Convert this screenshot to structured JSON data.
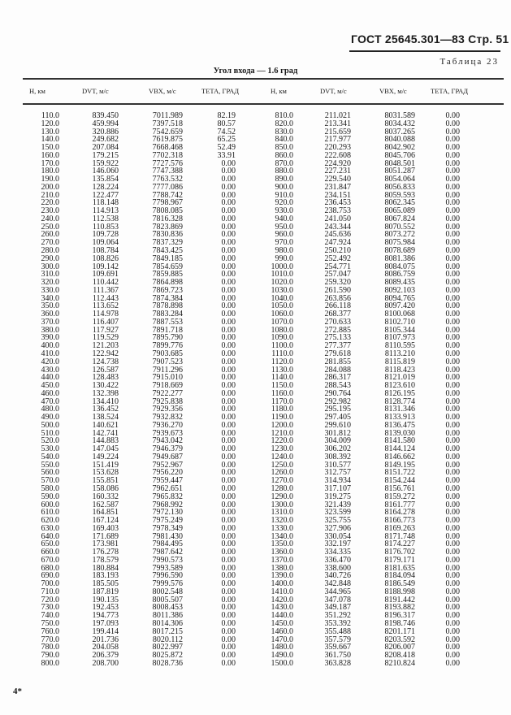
{
  "header": {
    "standard": "ГОСТ 25645.301—83 Стр. 51",
    "table_label": "Таблица 23",
    "title": "Угол входа — 1.6 град"
  },
  "columns": [
    "H, км",
    "DVT, м/с",
    "VBX, м/с",
    "ТЕТА, ГРАД",
    "H, км",
    "DVT, м/с",
    "VBX, м/с",
    "ТЕТА, ГРАД"
  ],
  "left_rows": [
    [
      "110.0",
      "839.450",
      "7011.989",
      "82.19"
    ],
    [
      "120.0",
      "459.994",
      "7397.518",
      "80.57"
    ],
    [
      "130.0",
      "320.886",
      "7542.659",
      "74.52"
    ],
    [
      "140.0",
      "249.682",
      "7619.875",
      "65.25"
    ],
    [
      "150.0",
      "207.084",
      "7668.468",
      "52.49"
    ],
    [
      "160.0",
      "179.215",
      "7702.318",
      "33.91"
    ],
    [
      "170.0",
      "159.922",
      "7727.576",
      "0.00"
    ],
    [
      "180.0",
      "146.060",
      "7747.388",
      "0.00"
    ],
    [
      "190.0",
      "135.854",
      "7763.532",
      "0.00"
    ],
    [
      "200.0",
      "128.224",
      "7777.086",
      "0.00"
    ],
    [
      "210.0",
      "122.477",
      "7788.742",
      "0.00"
    ],
    [
      "220.0",
      "118.148",
      "7798.967",
      "0.00"
    ],
    [
      "230.0",
      "114.913",
      "7808.085",
      "0.00"
    ],
    [
      "240.0",
      "112.538",
      "7816.328",
      "0.00"
    ],
    [
      "250.0",
      "110.853",
      "7823.869",
      "0.00"
    ],
    [
      "260.0",
      "109.728",
      "7830.836",
      "0.00"
    ],
    [
      "270.0",
      "109.064",
      "7837.329",
      "0.00"
    ],
    [
      "280.0",
      "108.784",
      "7843.425",
      "0.00"
    ],
    [
      "290.0",
      "108.826",
      "7849.185",
      "0.00"
    ],
    [
      "300.0",
      "109.142",
      "7854.659",
      "0.00"
    ],
    [
      "310.0",
      "109.691",
      "7859.885",
      "0.00"
    ],
    [
      "320.0",
      "110.442",
      "7864.898",
      "0.00"
    ],
    [
      "330.0",
      "111.367",
      "7869.723",
      "0.00"
    ],
    [
      "340.0",
      "112.443",
      "7874.384",
      "0.00"
    ],
    [
      "350.0",
      "113.652",
      "7878.898",
      "0.00"
    ],
    [
      "360.0",
      "114.978",
      "7883.284",
      "0.00"
    ],
    [
      "370.0",
      "116.407",
      "7887.553",
      "0.00"
    ],
    [
      "380.0",
      "117.927",
      "7891.718",
      "0.00"
    ],
    [
      "390.0",
      "119.529",
      "7895.790",
      "0.00"
    ],
    [
      "400.0",
      "121.203",
      "7899.776",
      "0.00"
    ],
    [
      "410.0",
      "122.942",
      "7903.685",
      "0.00"
    ],
    [
      "420.0",
      "124.738",
      "7907.523",
      "0.00"
    ],
    [
      "430.0",
      "126.587",
      "7911.296",
      "0.00"
    ],
    [
      "440.0",
      "128.483",
      "7915.010",
      "0.00"
    ],
    [
      "450.0",
      "130.422",
      "7918.669",
      "0.00"
    ],
    [
      "460.0",
      "132.398",
      "7922.277",
      "0.00"
    ],
    [
      "470.0",
      "134.410",
      "7925.838",
      "0.00"
    ],
    [
      "480.0",
      "136.452",
      "7929.356",
      "0.00"
    ],
    [
      "490.0",
      "138.524",
      "7932.832",
      "0.00"
    ],
    [
      "500.0",
      "140.621",
      "7936.270",
      "0.00"
    ],
    [
      "510.0",
      "142.741",
      "7939.673",
      "0.00"
    ],
    [
      "520.0",
      "144.883",
      "7943.042",
      "0.00"
    ],
    [
      "530.0",
      "147.045",
      "7946.379",
      "0.00"
    ],
    [
      "540.0",
      "149.224",
      "7949.687",
      "0.00"
    ],
    [
      "550.0",
      "151.419",
      "7952.967",
      "0.00"
    ],
    [
      "560.0",
      "153.628",
      "7956.220",
      "0.00"
    ],
    [
      "570.0",
      "155.851",
      "7959.447",
      "0.00"
    ],
    [
      "580.0",
      "158.086",
      "7962.651",
      "0.00"
    ],
    [
      "590.0",
      "160.332",
      "7965.832",
      "0.00"
    ],
    [
      "600.0",
      "162.587",
      "7968.992",
      "0.00"
    ],
    [
      "610.0",
      "164.851",
      "7972.130",
      "0.00"
    ],
    [
      "620.0",
      "167.124",
      "7975.249",
      "0.00"
    ],
    [
      "630.0",
      "169.403",
      "7978.349",
      "0.00"
    ],
    [
      "640.0",
      "171.689",
      "7981.430",
      "0.00"
    ],
    [
      "650.0",
      "173.981",
      "7984.495",
      "0.00"
    ],
    [
      "660.0",
      "176.278",
      "7987.642",
      "0.00"
    ],
    [
      "670.0",
      "178.579",
      "7990.573",
      "0.00"
    ],
    [
      "680.0",
      "180.884",
      "7993.589",
      "0.00"
    ],
    [
      "690.0",
      "183.193",
      "7996.590",
      "0.00"
    ],
    [
      "700.0",
      "185.505",
      "7999.576",
      "0.00"
    ],
    [
      "710.0",
      "187.819",
      "8002.548",
      "0.00"
    ],
    [
      "720.0",
      "190.135",
      "8005.507",
      "0.00"
    ],
    [
      "730.0",
      "192.453",
      "8008.453",
      "0.00"
    ],
    [
      "740.0",
      "194.773",
      "8011.386",
      "0.00"
    ],
    [
      "750.0",
      "197.093",
      "8014.306",
      "0.00"
    ],
    [
      "760.0",
      "199.414",
      "8017.215",
      "0.00"
    ],
    [
      "770.0",
      "201.736",
      "8020.112",
      "0.00"
    ],
    [
      "780.0",
      "204.058",
      "8022.997",
      "0.00"
    ],
    [
      "790.0",
      "206.379",
      "8025.872",
      "0.00"
    ],
    [
      "800.0",
      "208.700",
      "8028.736",
      "0.00"
    ]
  ],
  "right_rows": [
    [
      "810.0",
      "211.021",
      "8031.589",
      "0.00"
    ],
    [
      "820.0",
      "213.341",
      "8034.432",
      "0.00"
    ],
    [
      "830.0",
      "215.659",
      "8037.265",
      "0.00"
    ],
    [
      "840.0",
      "217.977",
      "8040.088",
      "0.00"
    ],
    [
      "850.0",
      "220.293",
      "8042.902",
      "0.00"
    ],
    [
      "860.0",
      "222.608",
      "8045.706",
      "0.00"
    ],
    [
      "870.0",
      "224.920",
      "8048.501",
      "0.00"
    ],
    [
      "880.0",
      "227.231",
      "8051.287",
      "0.00"
    ],
    [
      "890.0",
      "229.540",
      "8054.064",
      "0.00"
    ],
    [
      "900.0",
      "231.847",
      "8056.833",
      "0.00"
    ],
    [
      "910.0",
      "234.151",
      "8059.593",
      "0.00"
    ],
    [
      "920.0",
      "236.453",
      "8062.345",
      "0.00"
    ],
    [
      "930.0",
      "238.753",
      "8065.089",
      "0.00"
    ],
    [
      "940.0",
      "241.050",
      "8067.824",
      "0.00"
    ],
    [
      "950.0",
      "243.344",
      "8070.552",
      "0.00"
    ],
    [
      "960.0",
      "245.636",
      "8073.272",
      "0.00"
    ],
    [
      "970.0",
      "247.924",
      "8075.984",
      "0.00"
    ],
    [
      "980.0",
      "250.210",
      "8078.689",
      "0.00"
    ],
    [
      "990.0",
      "252.492",
      "8081.386",
      "0.00"
    ],
    [
      "1000.0",
      "254.771",
      "8084.075",
      "0.00"
    ],
    [
      "1010.0",
      "257.047",
      "8086.759",
      "0.00"
    ],
    [
      "1020.0",
      "259.320",
      "8089.435",
      "0.00"
    ],
    [
      "1030.0",
      "261.590",
      "8092.103",
      "0.00"
    ],
    [
      "1040.0",
      "263.856",
      "8094.765",
      "0.00"
    ],
    [
      "1050.0",
      "266.118",
      "8097.420",
      "0.00"
    ],
    [
      "1060.0",
      "268.377",
      "8100.068",
      "0.00"
    ],
    [
      "1070.0",
      "270.633",
      "8102.710",
      "0.00"
    ],
    [
      "1080.0",
      "272.885",
      "8105.344",
      "0.00"
    ],
    [
      "1090.0",
      "275.133",
      "8107.973",
      "0.00"
    ],
    [
      "1100.0",
      "277.377",
      "8110.595",
      "0.00"
    ],
    [
      "1110.0",
      "279.618",
      "8113.210",
      "0.00"
    ],
    [
      "1120.0",
      "281.855",
      "8115.819",
      "0.00"
    ],
    [
      "1130.0",
      "284.088",
      "8118.423",
      "0.00"
    ],
    [
      "1140.0",
      "286.317",
      "8121.019",
      "0.00"
    ],
    [
      "1150.0",
      "288.543",
      "8123.610",
      "0.00"
    ],
    [
      "1160.0",
      "290.764",
      "8126.195",
      "0.00"
    ],
    [
      "1170.0",
      "292.982",
      "8128.774",
      "0.00"
    ],
    [
      "1180.0",
      "295.195",
      "8131.346",
      "0.00"
    ],
    [
      "1190.0",
      "297.405",
      "8133.913",
      "0.00"
    ],
    [
      "1200.0",
      "299.610",
      "8136.475",
      "0.00"
    ],
    [
      "1210.0",
      "301.812",
      "8139.030",
      "0.00"
    ],
    [
      "1220.0",
      "304.009",
      "8141.580",
      "0.00"
    ],
    [
      "1230.0",
      "306.202",
      "8144.124",
      "0.00"
    ],
    [
      "1240.0",
      "308.392",
      "8146.662",
      "0.00"
    ],
    [
      "1250.0",
      "310.577",
      "8149.195",
      "0.00"
    ],
    [
      "1260.0",
      "312.757",
      "8151.722",
      "0.00"
    ],
    [
      "1270.0",
      "314.934",
      "8154.244",
      "0.00"
    ],
    [
      "1280.0",
      "317.107",
      "8156.761",
      "0.00"
    ],
    [
      "1290.0",
      "319.275",
      "8159.272",
      "0.00"
    ],
    [
      "1300.0",
      "321.439",
      "8161.777",
      "0.00"
    ],
    [
      "1310.0",
      "323.599",
      "8164.278",
      "0.00"
    ],
    [
      "1320.0",
      "325.755",
      "8166.773",
      "0.00"
    ],
    [
      "1330.0",
      "327.906",
      "8169.263",
      "0.00"
    ],
    [
      "1340.0",
      "330.054",
      "8171.748",
      "0.00"
    ],
    [
      "1350.0",
      "332.197",
      "8174.227",
      "0.00"
    ],
    [
      "1360.0",
      "334.335",
      "8176.702",
      "0.00"
    ],
    [
      "1370.0",
      "336.470",
      "8179.171",
      "0.00"
    ],
    [
      "1380.0",
      "338.600",
      "8181.635",
      "0.00"
    ],
    [
      "1390.0",
      "340.726",
      "8184.094",
      "0.00"
    ],
    [
      "1400.0",
      "342.848",
      "8186.549",
      "0.00"
    ],
    [
      "1410.0",
      "344.965",
      "8188.998",
      "0.00"
    ],
    [
      "1420.0",
      "347.078",
      "8191.442",
      "0.00"
    ],
    [
      "1430.0",
      "349.187",
      "8193.882",
      "0.00"
    ],
    [
      "1440.0",
      "351.292",
      "8196.317",
      "0.00"
    ],
    [
      "1450.0",
      "353.392",
      "8198.746",
      "0.00"
    ],
    [
      "1460.0",
      "355.488",
      "8201.171",
      "0.00"
    ],
    [
      "1470.0",
      "357.579",
      "8203.592",
      "0.00"
    ],
    [
      "1480.0",
      "359.667",
      "8206.007",
      "0.00"
    ],
    [
      "1490.0",
      "361.750",
      "8208.418",
      "0.00"
    ],
    [
      "1500.0",
      "363.828",
      "8210.824",
      "0.00"
    ]
  ],
  "footer": {
    "page_mark": "4*"
  }
}
